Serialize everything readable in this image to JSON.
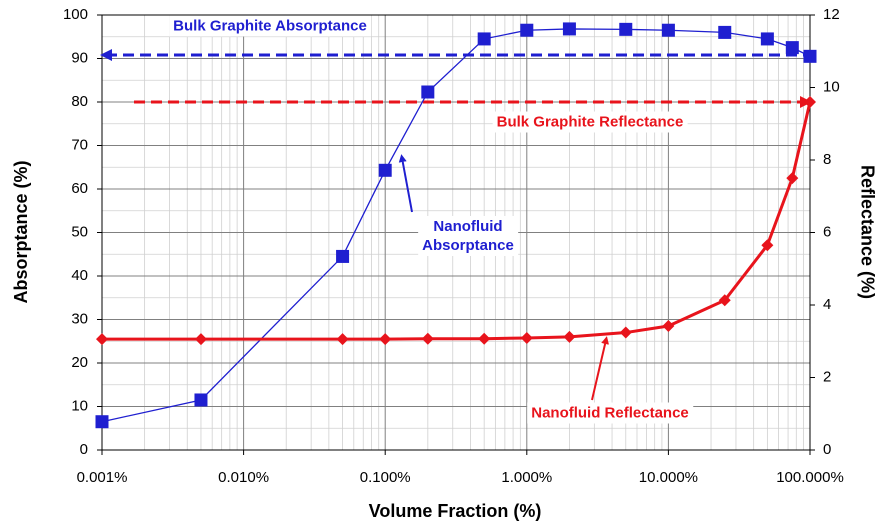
{
  "chart_data": {
    "type": "line",
    "x_label": "Volume Fraction (%)",
    "y_label": "Absorptance (%)",
    "y2_label": "Reflectance (%)",
    "x": [
      0.001,
      0.005,
      0.05,
      0.1,
      0.2,
      0.5,
      1,
      2,
      5,
      10,
      25,
      50,
      75,
      100
    ],
    "series": [
      {
        "color": "#1f1fd0",
        "marker": "square",
        "values": [
          6.5,
          11.5,
          44.5,
          64.3,
          82.3,
          94.5,
          96.5,
          96.8,
          96.7,
          96.5,
          96,
          94.5,
          92.5,
          90.5
        ]
      },
      {
        "color": "#e8141c",
        "marker": "diamond",
        "axis": "y2",
        "values": [
          3.06,
          3.06,
          3.06,
          3.06,
          3.07,
          3.07,
          3.09,
          3.12,
          3.24,
          3.42,
          4.13,
          5.65,
          7.5,
          9.6
        ]
      }
    ],
    "xscale": "log",
    "xlim": [
      0.001,
      100
    ],
    "xticks": [
      {
        "value": 0.001,
        "label": "0.001%"
      },
      {
        "value": 0.01,
        "label": "0.010%"
      },
      {
        "value": 0.1,
        "label": "0.100%"
      },
      {
        "value": 1,
        "label": "1.000%"
      },
      {
        "value": 10,
        "label": "10.000%"
      },
      {
        "value": 100,
        "label": "100.000%"
      }
    ],
    "ylim": [
      0,
      100
    ],
    "yticks": [
      0,
      10,
      20,
      30,
      40,
      50,
      60,
      70,
      80,
      90,
      100
    ],
    "y2lim": [
      0,
      12
    ],
    "y2ticks": [
      0,
      2,
      4,
      6,
      8,
      10,
      12
    ],
    "grid": true,
    "minor_grid": true,
    "reference_lines": [
      {
        "label": "Bulk Graphite Absorptance",
        "value": 90.8,
        "color": "#1f1fd0"
      },
      {
        "label": "Bulk Graphite Reflectance",
        "value": 9.6,
        "axis": "y2",
        "color": "#e8141c"
      }
    ],
    "annotations": [
      {
        "text": "Nanofluid\nAbsorptance",
        "color": "#1f1fd0"
      },
      {
        "text": "Nanofluid Reflectance",
        "color": "#e8141c"
      }
    ]
  }
}
